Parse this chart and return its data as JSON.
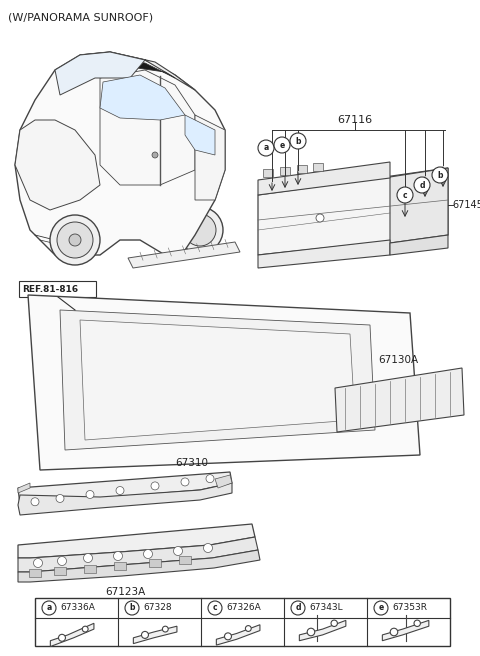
{
  "title": "(W/PANORAMA SUNROOF)",
  "bg_color": "#ffffff",
  "lc": "#333333",
  "legend_items": [
    {
      "circle": "a",
      "code": "67336A"
    },
    {
      "circle": "b",
      "code": "67328"
    },
    {
      "circle": "c",
      "code": "67326A"
    },
    {
      "circle": "d",
      "code": "67343L"
    },
    {
      "circle": "e",
      "code": "67353R"
    }
  ]
}
